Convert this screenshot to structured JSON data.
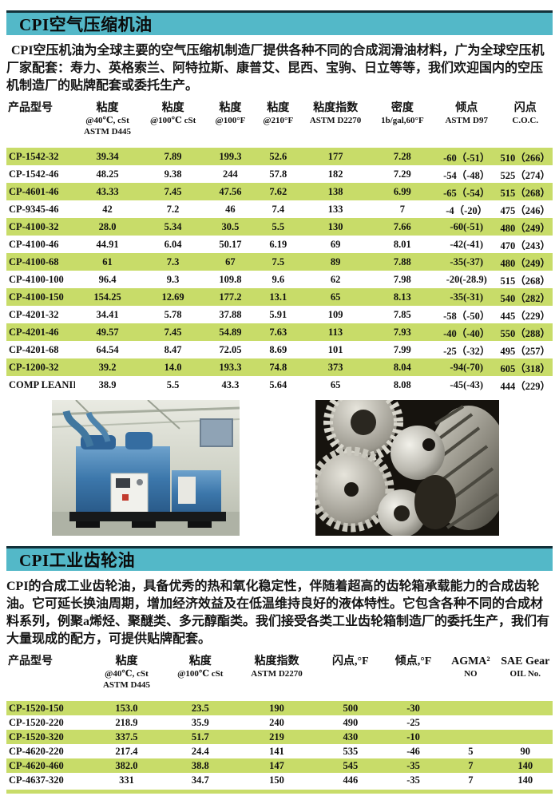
{
  "colors": {
    "banner": "#53b8c8",
    "banner_border": "#123039",
    "row_green": "#c8dc69"
  },
  "section1": {
    "title": "CPI空气压缩机油",
    "intro": "CPI空压机油为全球主要的空气压缩机制造厂提供各种不同的合成润滑油材料，广为全球空压机厂家配套：寿力、英格索兰、阿特拉斯、康普艾、昆西、宝驹、日立等等，我们欢迎国内的空压机制造厂的贴牌配套或委托生产。",
    "table": {
      "columns": [
        {
          "title": "产品型号",
          "sub1": "",
          "sub2": ""
        },
        {
          "title": "粘度",
          "sub1": "@40℃, cSt",
          "sub2": "ASTM D445"
        },
        {
          "title": "粘度",
          "sub1": "@100℃ cSt",
          "sub2": ""
        },
        {
          "title": "粘度",
          "sub1": "@100°F",
          "sub2": ""
        },
        {
          "title": "粘度",
          "sub1": "@210°F",
          "sub2": ""
        },
        {
          "title": "粘度指数",
          "sub1": "ASTM D2270",
          "sub2": ""
        },
        {
          "title": "密度",
          "sub1": "1b/gal,60°F",
          "sub2": ""
        },
        {
          "title": "倾点",
          "sub1": "ASTM D97",
          "sub2": ""
        },
        {
          "title": "闪点",
          "sub1": "C.O.C.",
          "sub2": ""
        }
      ],
      "rows": [
        [
          "CP-1542-32",
          "39.34",
          "7.89",
          "199.3",
          "52.6",
          "177",
          "7.28",
          "-60（-51）",
          "510（266）"
        ],
        [
          "CP-1542-46",
          "48.25",
          "9.38",
          "244",
          "57.8",
          "182",
          "7.29",
          "-54（-48）",
          "525（274）"
        ],
        [
          "CP-4601-46",
          "43.33",
          "7.45",
          "47.56",
          "7.62",
          "138",
          "6.99",
          "-65（-54）",
          "515（268）"
        ],
        [
          "CP-9345-46",
          "42",
          "7.2",
          "46",
          "7.4",
          "133",
          "7",
          "-4（-20）",
          "475（246）"
        ],
        [
          "CP-4100-32",
          "28.0",
          "5.34",
          "30.5",
          "5.5",
          "130",
          "7.66",
          "-60(-51)",
          "480（249）"
        ],
        [
          "CP-4100-46",
          "44.91",
          "6.04",
          "50.17",
          "6.19",
          "69",
          "8.01",
          "-42(-41)",
          "470（243）"
        ],
        [
          "CP-4100-68",
          "61",
          "7.3",
          "67",
          "7.5",
          "89",
          "7.88",
          "-35(-37)",
          "480（249）"
        ],
        [
          "CP-4100-100",
          "96.4",
          "9.3",
          "109.8",
          "9.6",
          "62",
          "7.98",
          "-20(-28.9)",
          "515（268）"
        ],
        [
          "CP-4100-150",
          "154.25",
          "12.69",
          "177.2",
          "13.1",
          "65",
          "8.13",
          "-35(-31)",
          "540（282）"
        ],
        [
          "CP-4201-32",
          "34.41",
          "5.78",
          "37.88",
          "5.91",
          "109",
          "7.85",
          "-58（-50）",
          "445（229）"
        ],
        [
          "CP-4201-46",
          "49.57",
          "7.45",
          "54.89",
          "7.63",
          "113",
          "7.93",
          "-40（-40）",
          "550（288）"
        ],
        [
          "CP-4201-68",
          "64.54",
          "8.47",
          "72.05",
          "8.69",
          "101",
          "7.99",
          "-25（-32）",
          "495（257）"
        ],
        [
          "CP-1200-32",
          "39.2",
          "14.0",
          "193.3",
          "74.8",
          "373",
          "8.04",
          "-94(-70)",
          "605（318）"
        ],
        [
          "COMP LEANII",
          "38.9",
          "5.5",
          "43.3",
          "5.64",
          "65",
          "8.08",
          "-45(-43)",
          "444（229）"
        ]
      ]
    }
  },
  "photos": {
    "left_caption": "空气压缩机",
    "right_caption": "工业齿轮"
  },
  "section2": {
    "title": "CPI工业齿轮油",
    "intro": "CPI的合成工业齿轮油，具备优秀的热和氧化稳定性，伴随着超高的齿轮箱承载能力的合成齿轮油。它可延长换油周期，增加经济效益及在低温维持良好的液体特性。它包含各种不同的合成材料系列，例聚a烯烃、聚醚类、多元醇酯类。我们接受各类工业齿轮箱制造厂的委托生产，我们有大量现成的配方，可提供贴牌配套。",
    "table": {
      "columns": [
        {
          "title": "产品型号",
          "sub1": "",
          "sub2": ""
        },
        {
          "title": "粘度",
          "sub1": "@40℃, cSt",
          "sub2": "ASTM D445"
        },
        {
          "title": "粘度",
          "sub1": "@100℃ cSt",
          "sub2": ""
        },
        {
          "title": "粘度指数",
          "sub1": "ASTM D2270",
          "sub2": ""
        },
        {
          "title": "闪点,°F",
          "sub1": "",
          "sub2": ""
        },
        {
          "title": "倾点,°F",
          "sub1": "",
          "sub2": ""
        },
        {
          "title": "AGMA²",
          "sub1": "NO",
          "sub2": ""
        },
        {
          "title": "SAE Gear",
          "sub1": "OIL No.",
          "sub2": ""
        }
      ],
      "rows": [
        [
          "CP-1520-150",
          "153.0",
          "23.5",
          "190",
          "500",
          "-30",
          "",
          ""
        ],
        [
          "CP-1520-220",
          "218.9",
          "35.9",
          "240",
          "490",
          "-25",
          "",
          ""
        ],
        [
          "CP-1520-320",
          "337.5",
          "51.7",
          "219",
          "430",
          "-10",
          "",
          ""
        ],
        [
          "CP-4620-220",
          "217.4",
          "24.4",
          "141",
          "535",
          "-46",
          "5",
          "90"
        ],
        [
          "CP-4620-460",
          "382.0",
          "38.8",
          "147",
          "545",
          "-35",
          "7",
          "140"
        ],
        [
          "CP-4637-320",
          "331",
          "34.7",
          "150",
          "446",
          "-35",
          "7",
          "140"
        ]
      ]
    }
  }
}
